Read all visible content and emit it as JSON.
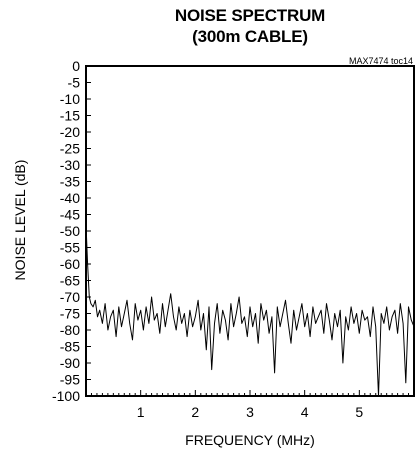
{
  "chart_data": {
    "type": "line",
    "title": "NOISE SPECTRUM",
    "subtitle": "(300m CABLE)",
    "annotation": "MAX7474 toc14",
    "xlabel": "FREQUENCY (MHz)",
    "ylabel": "NOISE LEVEL (dB)",
    "xlim": [
      0,
      6
    ],
    "ylim": [
      -100,
      0
    ],
    "grid": false,
    "x_ticks": [
      1,
      2,
      3,
      4,
      5
    ],
    "y_ticks": [
      0,
      -5,
      -10,
      -15,
      -20,
      -25,
      -30,
      -35,
      -40,
      -45,
      -50,
      -55,
      -60,
      -65,
      -70,
      -75,
      -80,
      -85,
      -90,
      -95,
      -100
    ],
    "series": [
      {
        "x": [
          0.0,
          0.03,
          0.06,
          0.09,
          0.13,
          0.17,
          0.21,
          0.25,
          0.3,
          0.35,
          0.4,
          0.45,
          0.5,
          0.55,
          0.6,
          0.65,
          0.7,
          0.75,
          0.8,
          0.85,
          0.9,
          0.95,
          1.0,
          1.05,
          1.1,
          1.15,
          1.2,
          1.25,
          1.3,
          1.35,
          1.4,
          1.45,
          1.5,
          1.55,
          1.6,
          1.65,
          1.7,
          1.75,
          1.8,
          1.85,
          1.9,
          1.95,
          2.0,
          2.05,
          2.1,
          2.15,
          2.2,
          2.25,
          2.3,
          2.35,
          2.4,
          2.45,
          2.5,
          2.55,
          2.6,
          2.65,
          2.7,
          2.75,
          2.8,
          2.85,
          2.9,
          2.95,
          3.0,
          3.05,
          3.1,
          3.15,
          3.2,
          3.25,
          3.3,
          3.35,
          3.4,
          3.45,
          3.5,
          3.55,
          3.6,
          3.65,
          3.7,
          3.75,
          3.8,
          3.85,
          3.9,
          3.95,
          4.0,
          4.05,
          4.1,
          4.15,
          4.2,
          4.25,
          4.3,
          4.35,
          4.4,
          4.45,
          4.5,
          4.55,
          4.6,
          4.65,
          4.7,
          4.75,
          4.8,
          4.85,
          4.9,
          4.95,
          5.0,
          5.05,
          5.1,
          5.15,
          5.2,
          5.25,
          5.3,
          5.35,
          5.4,
          5.45,
          5.5,
          5.55,
          5.6,
          5.65,
          5.7,
          5.75,
          5.8,
          5.85,
          5.9,
          5.95,
          6.0
        ],
        "values": [
          -48,
          -60,
          -70,
          -72,
          -73,
          -71,
          -76,
          -74,
          -78,
          -72,
          -80,
          -76,
          -74,
          -82,
          -73,
          -79,
          -75,
          -71,
          -78,
          -83,
          -72,
          -77,
          -74,
          -80,
          -73,
          -78,
          -70,
          -77,
          -75,
          -81,
          -72,
          -79,
          -74,
          -69,
          -76,
          -80,
          -73,
          -78,
          -75,
          -82,
          -74,
          -79,
          -76,
          -71,
          -80,
          -75,
          -86,
          -73,
          -92,
          -78,
          -72,
          -81,
          -74,
          -77,
          -83,
          -72,
          -79,
          -75,
          -70,
          -78,
          -76,
          -82,
          -73,
          -79,
          -75,
          -84,
          -72,
          -77,
          -74,
          -81,
          -76,
          -93,
          -73,
          -79,
          -75,
          -71,
          -78,
          -84,
          -74,
          -80,
          -76,
          -72,
          -79,
          -75,
          -82,
          -73,
          -78,
          -76,
          -74,
          -81,
          -72,
          -77,
          -83,
          -75,
          -79,
          -74,
          -90,
          -76,
          -80,
          -73,
          -78,
          -75,
          -81,
          -74,
          -77,
          -76,
          -82,
          -73,
          -79,
          -100,
          -75,
          -78,
          -73,
          -80,
          -76,
          -74,
          -81,
          -72,
          -78,
          -96,
          -73,
          -77,
          -79
        ]
      }
    ]
  }
}
